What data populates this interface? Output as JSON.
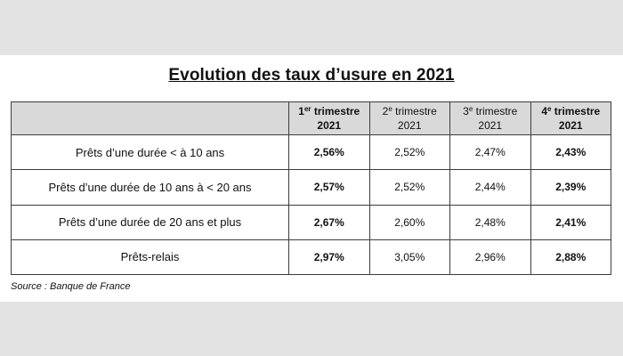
{
  "title": "Evolution des taux d’usure en 2021",
  "source": "Source : Banque de France",
  "header": {
    "corner": "",
    "columns": [
      {
        "ordinal": "1",
        "sup": "er",
        "label": " trimestre",
        "year": "2021",
        "highlight": true
      },
      {
        "ordinal": "2",
        "sup": "e",
        "label": " trimestre",
        "year": "2021",
        "highlight": false
      },
      {
        "ordinal": "3",
        "sup": "e",
        "label": " trimestre",
        "year": "2021",
        "highlight": false
      },
      {
        "ordinal": "4",
        "sup": "e",
        "label": " trimestre",
        "year": "2021",
        "highlight": true
      }
    ]
  },
  "rows": [
    {
      "label": "Prêts d’une durée < à 10 ans",
      "values": [
        "2,56%",
        "2,52%",
        "2,47%",
        "2,43%"
      ]
    },
    {
      "label": "Prêts d’une durée de 10 ans à < 20 ans",
      "values": [
        "2,57%",
        "2,52%",
        "2,44%",
        "2,39%"
      ]
    },
    {
      "label": "Prêts d’une durée de 20 ans et plus",
      "values": [
        "2,67%",
        "2,60%",
        "2,48%",
        "2,41%"
      ]
    },
    {
      "label": "Prêts-relais",
      "values": [
        "2,97%",
        "3,05%",
        "2,96%",
        "2,88%"
      ]
    }
  ],
  "chart_data": {
    "type": "table",
    "title": "Evolution des taux d’usure en 2021",
    "categories": [
      "1er trimestre 2021",
      "2e trimestre 2021",
      "3e trimestre 2021",
      "4e trimestre 2021"
    ],
    "series": [
      {
        "name": "Prêts d’une durée < à 10 ans",
        "values": [
          2.56,
          2.52,
          2.47,
          2.43
        ]
      },
      {
        "name": "Prêts d’une durée de 10 ans à < 20 ans",
        "values": [
          2.57,
          2.52,
          2.44,
          2.39
        ]
      },
      {
        "name": "Prêts d’une durée de 20 ans et plus",
        "values": [
          2.67,
          2.6,
          2.48,
          2.41
        ]
      },
      {
        "name": "Prêts-relais",
        "values": [
          2.97,
          3.05,
          2.96,
          2.88
        ]
      }
    ],
    "units": "%"
  }
}
